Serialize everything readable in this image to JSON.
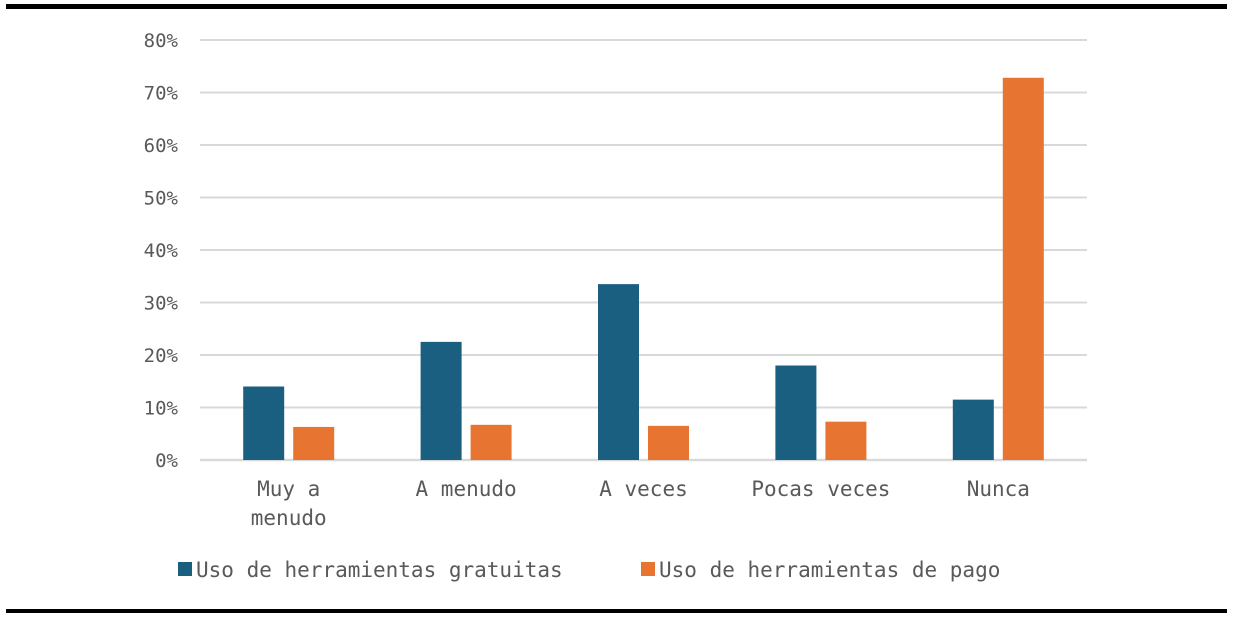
{
  "chart_data": {
    "type": "bar",
    "title": "",
    "xlabel": "",
    "ylabel": "",
    "categories": [
      [
        "Muy a",
        "menudo"
      ],
      [
        "A menudo"
      ],
      [
        "A veces"
      ],
      [
        "Pocas veces"
      ],
      [
        "Nunca"
      ]
    ],
    "series": [
      {
        "name": "Uso de herramientas gratuitas",
        "color": "#1a5e80",
        "values": [
          14,
          22.5,
          33.5,
          18,
          11.5
        ]
      },
      {
        "name": "Uso de herramientas de pago",
        "color": "#e87431",
        "values": [
          6.3,
          6.7,
          6.5,
          7.3,
          72.8
        ]
      }
    ],
    "ylim": [
      0,
      80
    ],
    "yticks": [
      0,
      10,
      20,
      30,
      40,
      50,
      60,
      70,
      80
    ],
    "ytick_labels": [
      "0%",
      "10%",
      "20%",
      "30%",
      "40%",
      "50%",
      "60%",
      "70%",
      "80%"
    ],
    "grid": true,
    "gridline_color": "#d9d9d9",
    "legend_position": "bottom"
  }
}
